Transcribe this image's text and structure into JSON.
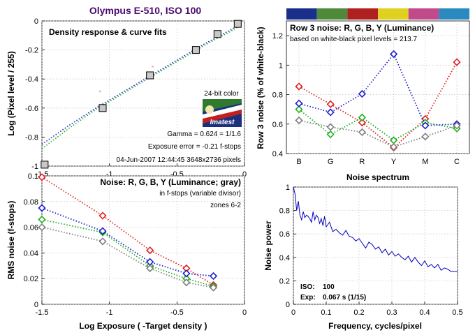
{
  "figure": {
    "title": "Olympus E-510, ISO 100",
    "title_color": "#4b0a6e"
  },
  "colors": {
    "R": "#e02020",
    "G": "#20b020",
    "B": "#2020d0",
    "Y": "#808080",
    "points_faint": "#e89a8a",
    "exposure_error": "#e06070",
    "line": "#0000bb",
    "swatches": [
      "#1a2f8c",
      "#4f8a3a",
      "#b02020",
      "#e0d020",
      "#c04a8a",
      "#2a8ac0"
    ]
  },
  "logo": {
    "caption": "24-bit color",
    "name": "Imatest"
  },
  "chart_data": [
    {
      "id": "density",
      "type": "line",
      "title": "Density response & curve fits",
      "xlabel": "",
      "ylabel": "Log (Pixel level / 255)",
      "xlim": [
        -1.5,
        0
      ],
      "ylim": [
        -1,
        0
      ],
      "xticks": [
        -1.5,
        -1,
        -0.5,
        0
      ],
      "yticks": [
        -1,
        -0.8,
        -0.6,
        -0.4,
        -0.2,
        0
      ],
      "grid": true,
      "patches": {
        "x": [
          -1.48,
          -1.05,
          -0.7,
          -0.36,
          -0.2,
          -0.05
        ],
        "y": [
          -0.99,
          -0.6,
          -0.375,
          -0.2,
          -0.09,
          -0.02
        ]
      },
      "faint_points": {
        "x": [
          -1.5,
          -1.07,
          -0.68
        ],
        "y": [
          -0.72,
          -0.49,
          -0.32
        ]
      },
      "fit_blue": {
        "x": [
          -1.5,
          -1.3,
          -1.1,
          -0.9,
          -0.7,
          -0.5,
          -0.3,
          -0.1,
          -0.03
        ],
        "y": [
          -0.85,
          -0.72,
          -0.6,
          -0.49,
          -0.38,
          -0.27,
          -0.16,
          -0.06,
          -0.02
        ]
      },
      "fit_green": {
        "x": [
          -1.5,
          -1.3,
          -1.1,
          -0.9,
          -0.7,
          -0.5,
          -0.3,
          -0.1,
          -0.03
        ],
        "y": [
          -0.88,
          -0.74,
          -0.61,
          -0.5,
          -0.39,
          -0.28,
          -0.17,
          -0.07,
          -0.03
        ]
      },
      "gamma_text": "Gamma = 0.624 = 1/1.6",
      "exposure_error_text": "Exposure error = -0.21 f-stops",
      "date_text": "04-Jun-2007 12:44:45   3648x2736 pixels"
    },
    {
      "id": "row3noise",
      "type": "line",
      "title": "Row 3 noise: R, G, B, Y (Luminance)",
      "subtitle": "based on white-black pixel levels = 213.7",
      "xlabel": "Noise spectrum",
      "ylabel": "Row 3 noise (% of white-black)",
      "categories": [
        "B",
        "G",
        "R",
        "Y",
        "M",
        "C"
      ],
      "ylim": [
        0.4,
        1.3
      ],
      "yticks": [
        0.4,
        0.6,
        0.8,
        1,
        1.2
      ],
      "grid": true,
      "series": [
        {
          "name": "R",
          "values": [
            0.855,
            0.735,
            0.61,
            0.44,
            0.635,
            1.02
          ]
        },
        {
          "name": "G",
          "values": [
            0.7,
            0.53,
            0.645,
            0.49,
            0.61,
            0.57
          ]
        },
        {
          "name": "B",
          "values": [
            0.74,
            0.68,
            0.805,
            1.075,
            0.59,
            0.6
          ]
        },
        {
          "name": "Y",
          "values": [
            0.625,
            0.58,
            0.545,
            0.445,
            0.515,
            0.59
          ]
        }
      ]
    },
    {
      "id": "rmsnoise",
      "type": "line",
      "title": "Noise: R, G, B, Y (Luminance; gray)",
      "note1": "in f-stops (variable divisor)",
      "note2": "zones 6-2",
      "xlabel": "Log Exposure ( -Target density )",
      "ylabel": "RMS noise (f-stops)",
      "xlim": [
        -1.5,
        0
      ],
      "ylim": [
        0,
        0.1
      ],
      "xticks": [
        -1.5,
        -1,
        -0.5,
        0
      ],
      "yticks": [
        0,
        0.02,
        0.04,
        0.06,
        0.08,
        0.1
      ],
      "grid": true,
      "x": [
        -1.5,
        -1.05,
        -0.7,
        -0.43,
        -0.23
      ],
      "series": [
        {
          "name": "R",
          "values": [
            0.099,
            0.069,
            0.042,
            0.028,
            0.015
          ]
        },
        {
          "name": "G",
          "values": [
            0.066,
            0.056,
            0.03,
            0.02,
            0.014
          ]
        },
        {
          "name": "B",
          "values": [
            0.075,
            0.057,
            0.033,
            0.024,
            0.022
          ]
        },
        {
          "name": "Y",
          "values": [
            0.06,
            0.049,
            0.028,
            0.017,
            0.013
          ]
        }
      ]
    },
    {
      "id": "noisepower",
      "type": "line",
      "title": "",
      "xlabel": "Frequency, cycles/pixel",
      "ylabel": "Noise power",
      "xlim": [
        0,
        0.5
      ],
      "ylim": [
        0,
        1
      ],
      "xticks": [
        0,
        0.1,
        0.2,
        0.3,
        0.4,
        0.5
      ],
      "yticks": [
        0,
        0.2,
        0.4,
        0.6,
        0.8,
        1
      ],
      "grid": true,
      "x": [
        0,
        0.005,
        0.01,
        0.015,
        0.02,
        0.025,
        0.03,
        0.035,
        0.04,
        0.045,
        0.05,
        0.055,
        0.06,
        0.065,
        0.07,
        0.075,
        0.08,
        0.085,
        0.09,
        0.095,
        0.1,
        0.11,
        0.12,
        0.13,
        0.14,
        0.15,
        0.16,
        0.17,
        0.18,
        0.19,
        0.2,
        0.21,
        0.22,
        0.23,
        0.24,
        0.25,
        0.26,
        0.27,
        0.28,
        0.29,
        0.3,
        0.31,
        0.32,
        0.33,
        0.34,
        0.35,
        0.36,
        0.37,
        0.38,
        0.39,
        0.4,
        0.41,
        0.42,
        0.43,
        0.44,
        0.45,
        0.46,
        0.47,
        0.48,
        0.49,
        0.5
      ],
      "values": [
        1.0,
        0.94,
        0.8,
        0.88,
        0.76,
        0.72,
        0.79,
        0.74,
        0.76,
        0.75,
        0.73,
        0.7,
        0.79,
        0.72,
        0.76,
        0.74,
        0.69,
        0.73,
        0.67,
        0.75,
        0.66,
        0.7,
        0.62,
        0.64,
        0.61,
        0.59,
        0.63,
        0.58,
        0.57,
        0.54,
        0.56,
        0.52,
        0.48,
        0.53,
        0.51,
        0.47,
        0.49,
        0.44,
        0.47,
        0.42,
        0.45,
        0.41,
        0.43,
        0.4,
        0.38,
        0.41,
        0.36,
        0.4,
        0.36,
        0.33,
        0.37,
        0.32,
        0.34,
        0.31,
        0.34,
        0.29,
        0.31,
        0.3,
        0.28,
        0.28,
        0.28
      ],
      "info": [
        {
          "label": "ISO:",
          "value": "100"
        },
        {
          "label": "Exp:",
          "value": "0.067 s  (1/15)"
        }
      ]
    }
  ]
}
